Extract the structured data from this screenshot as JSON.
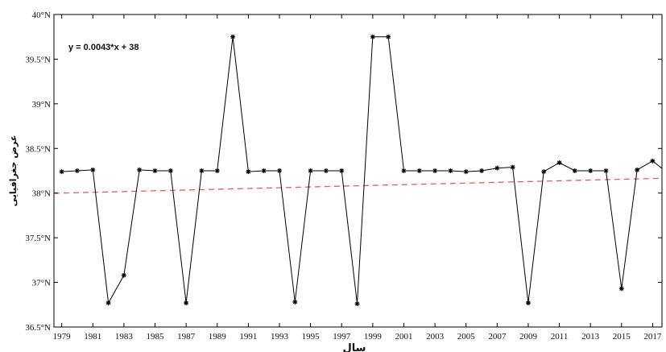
{
  "chart_data": {
    "type": "line",
    "title": "",
    "xlabel": "سال",
    "ylabel": "عرض جغرافیایی",
    "equation": "y = 0.0043*x + 38",
    "xlim": [
      1978.5,
      2017.6
    ],
    "ylim": [
      36.5,
      40
    ],
    "yticks": [
      36.5,
      37,
      37.5,
      38,
      38.5,
      39,
      39.5,
      40
    ],
    "ytick_labels": [
      "36.5°N",
      "37°N",
      "37.5°N",
      "38°N",
      "38.5°N",
      "39°N",
      "39.5°N",
      "40°N"
    ],
    "xticks": [
      1979,
      1981,
      1983,
      1985,
      1987,
      1989,
      1991,
      1993,
      1995,
      1997,
      1999,
      2001,
      2003,
      2005,
      2007,
      2009,
      2011,
      2013,
      2015,
      2017
    ],
    "xtick_labels": [
      "1979",
      "1981",
      "1983",
      "1985",
      "1987",
      "1989",
      "1991",
      "1993",
      "1995",
      "1997",
      "1999",
      "2001",
      "2003",
      "2005",
      "2007",
      "2009",
      "2011",
      "2013",
      "2015",
      "2017"
    ],
    "x": [
      1979,
      1980,
      1981,
      1982,
      1983,
      1984,
      1985,
      1986,
      1987,
      1988,
      1989,
      1990,
      1991,
      1992,
      1993,
      1994,
      1995,
      1996,
      1997,
      1998,
      1999,
      2000,
      2001,
      2002,
      2003,
      2004,
      2005,
      2006,
      2007,
      2008,
      2009,
      2010,
      2011,
      2012,
      2013,
      2014,
      2015,
      2016,
      2017,
      2018
    ],
    "series": [
      {
        "values": [
          38.24,
          38.25,
          38.26,
          36.77,
          37.08,
          38.26,
          38.25,
          38.25,
          36.77,
          38.25,
          38.25,
          39.75,
          38.24,
          38.25,
          38.25,
          36.78,
          38.25,
          38.25,
          38.25,
          36.76,
          39.75,
          39.75,
          38.25,
          38.25,
          38.25,
          38.25,
          38.24,
          38.25,
          38.28,
          38.29,
          36.77,
          38.24,
          38.34,
          38.25,
          38.25,
          38.25,
          36.93,
          38.26,
          38.36,
          38.22
        ],
        "color": "#000000"
      }
    ],
    "trendline": {
      "slope": 0.0043,
      "intercept": 38,
      "color": "#e06060"
    },
    "grid": false,
    "legend": "none"
  }
}
